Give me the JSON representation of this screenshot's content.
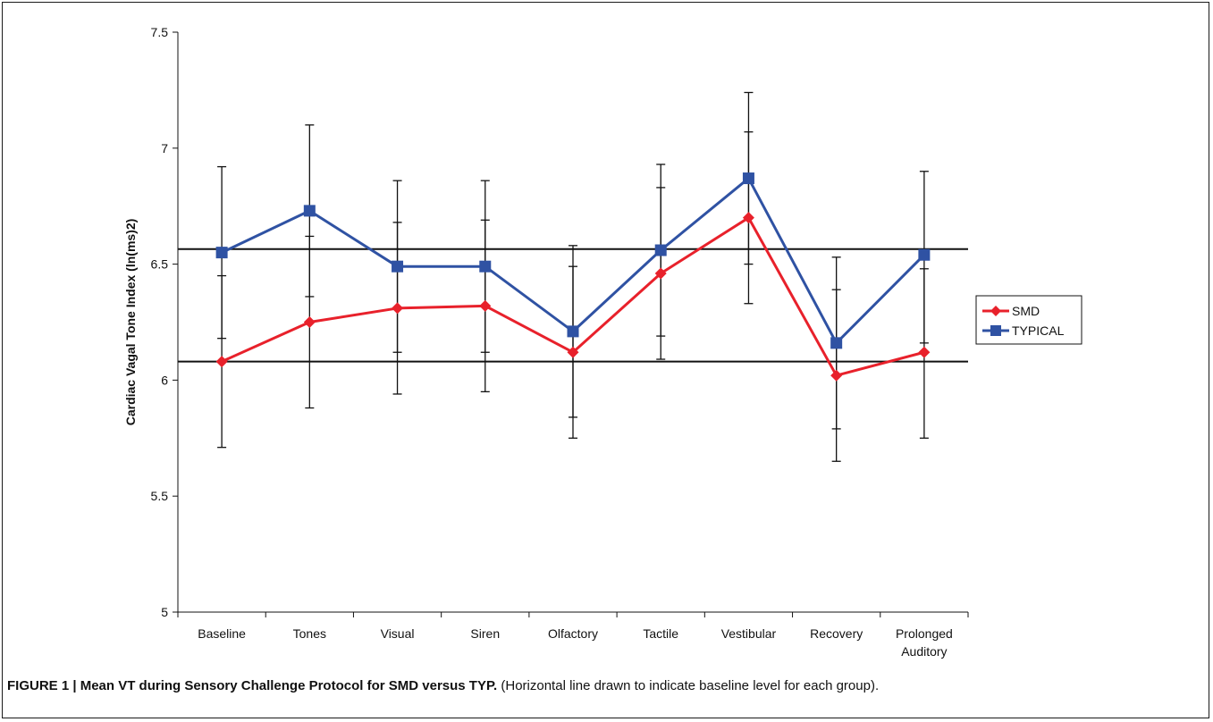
{
  "figure_caption": {
    "label": "FIGURE 1 | Mean VT during Sensory Challenge Protocol for SMD versus TYP.",
    "note": "(Horizontal line drawn to indicate baseline level for each group)."
  },
  "chart_data": {
    "type": "line",
    "title": "",
    "xlabel": "",
    "ylabel": "Cardiac Vagal Tone Index (ln(ms)2)",
    "ylim": [
      5,
      7.5
    ],
    "yticks": [
      "5",
      "5.5",
      "6",
      "6.5",
      "7",
      "7.5"
    ],
    "categories": [
      "Baseline",
      "Tones",
      "Visual",
      "Siren",
      "Olfactory",
      "Tactile",
      "Vestibular",
      "Recovery",
      "Prolonged Auditory"
    ],
    "legend_position": "right",
    "series": [
      {
        "name": "SMD",
        "color": "#e8212b",
        "marker": "diamond",
        "values": [
          6.08,
          6.25,
          6.31,
          6.32,
          6.12,
          6.46,
          6.7,
          6.02,
          6.12
        ],
        "error_low": [
          5.71,
          5.88,
          5.94,
          5.95,
          5.75,
          6.09,
          6.33,
          5.65,
          5.75
        ],
        "error_high": [
          6.45,
          6.62,
          6.68,
          6.69,
          6.49,
          6.83,
          7.07,
          6.39,
          6.48
        ]
      },
      {
        "name": "TYPICAL",
        "color": "#2f52a3",
        "marker": "square",
        "values": [
          6.55,
          6.73,
          6.49,
          6.49,
          6.21,
          6.56,
          6.87,
          6.16,
          6.54
        ],
        "error_low": [
          6.18,
          6.36,
          6.12,
          6.12,
          5.84,
          6.19,
          6.5,
          5.79,
          6.16
        ],
        "error_high": [
          6.92,
          7.1,
          6.86,
          6.86,
          6.58,
          6.93,
          7.24,
          6.53,
          6.9
        ]
      }
    ],
    "reference_lines": [
      6.08,
      6.565
    ]
  }
}
